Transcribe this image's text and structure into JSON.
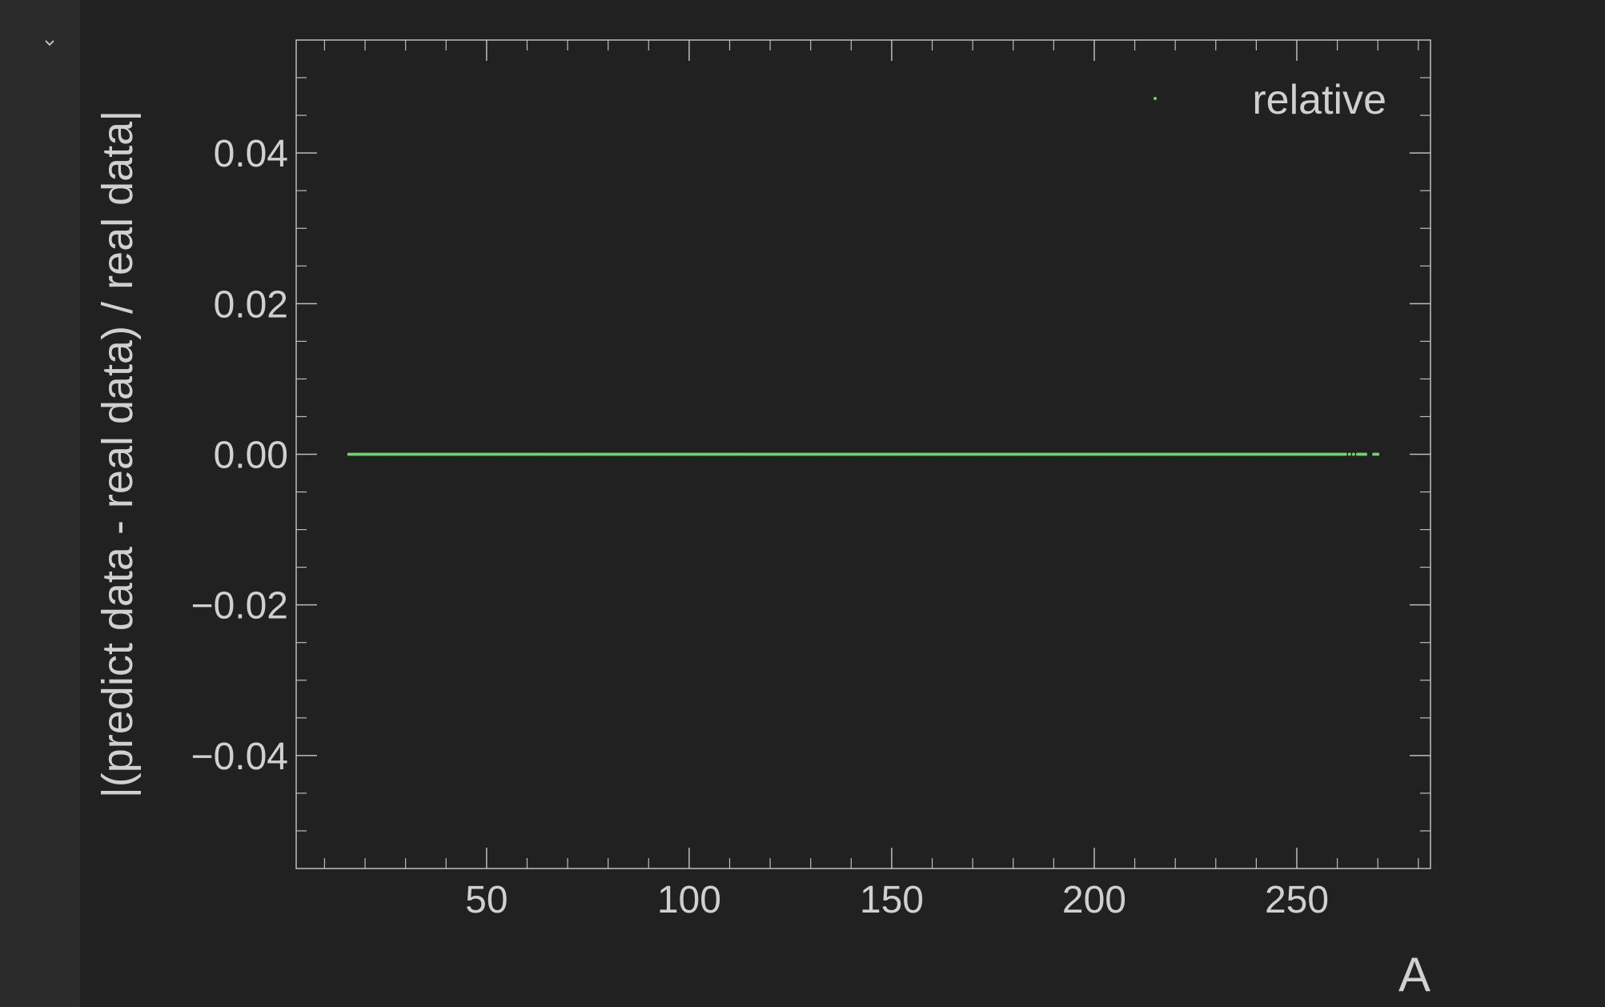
{
  "output_cell": {
    "collapse_icon": "chevron-down-icon"
  },
  "chart_data": {
    "type": "scatter",
    "xlabel": "A",
    "ylabel": "|(predict data - real data) / real data|",
    "xlim": [
      3,
      283
    ],
    "ylim": [
      -0.055,
      0.055
    ],
    "xticks": [
      50,
      100,
      150,
      200,
      250
    ],
    "xtick_labels": [
      "50",
      "100",
      "150",
      "200",
      "250"
    ],
    "yticks": [
      -0.04,
      -0.02,
      0.0,
      0.02,
      0.04
    ],
    "ytick_labels": [
      "−0.04",
      "−0.02",
      "0.00",
      "0.02",
      "0.04"
    ],
    "legend": {
      "placement": "top-right",
      "entries": [
        "relative"
      ]
    },
    "grid": false,
    "series": [
      {
        "name": "relative",
        "color": "#6fd26f",
        "x_range": [
          16,
          270
        ],
        "y_value": 0.0
      }
    ],
    "colors": {
      "background": "#212121",
      "axis": "#bdbdbd",
      "text": "#d0d0d0",
      "marker": "#6fd26f"
    }
  }
}
